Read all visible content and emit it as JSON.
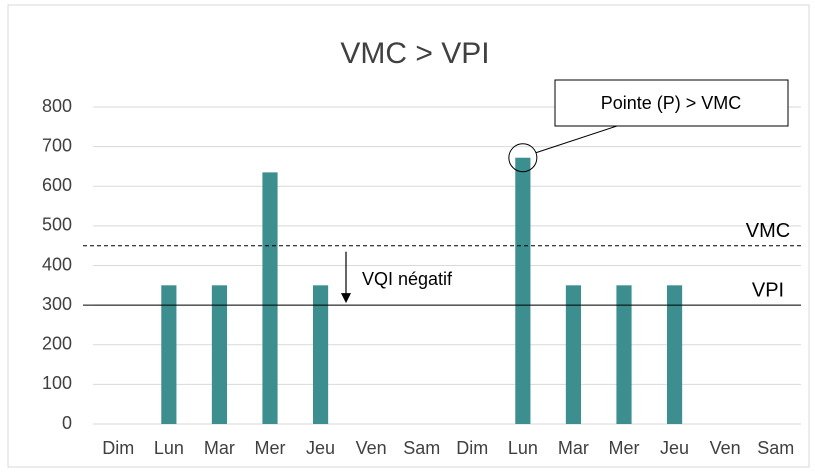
{
  "chart_data": {
    "type": "bar",
    "title": "VMC > VPI",
    "categories": [
      "Dim",
      "Lun",
      "Mar",
      "Mer",
      "Jeu",
      "Ven",
      "Sam",
      "Dim",
      "Lun",
      "Mar",
      "Mer",
      "Jeu",
      "Ven",
      "Sam"
    ],
    "values": [
      null,
      350,
      350,
      635,
      350,
      null,
      null,
      null,
      672,
      350,
      350,
      350,
      null,
      null
    ],
    "color": "#3d8f8f",
    "ylim": [
      0,
      800
    ],
    "yticks": [
      0,
      100,
      200,
      300,
      400,
      500,
      600,
      700,
      800
    ],
    "grid": true,
    "reference_lines": [
      {
        "name": "VMC",
        "value": 450,
        "style": "dashed"
      },
      {
        "name": "VPI",
        "value": 300,
        "style": "solid"
      }
    ],
    "annotations": [
      {
        "text": "VQI négatif"
      },
      {
        "text": "Pointe (P) > VMC"
      }
    ]
  }
}
